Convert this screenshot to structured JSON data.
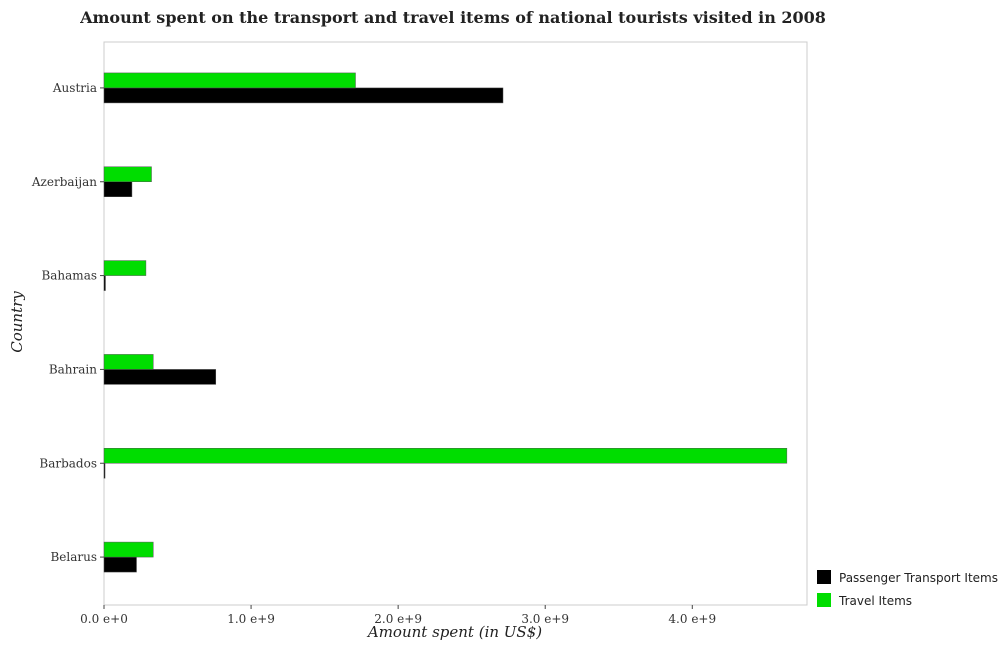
{
  "chart_data": {
    "type": "bar",
    "orientation": "horizontal",
    "title": "Amount spent on the transport and travel items of national tourists visited in 2008",
    "xlabel": "Amount spent (in US$)",
    "ylabel": "Country",
    "xlim": [
      0,
      4780000000
    ],
    "xticks": [
      0,
      1000000000,
      2000000000,
      3000000000,
      4000000000
    ],
    "xtick_labels": [
      "0.0 e+0",
      "1.0 e+9",
      "2.0 e+9",
      "3.0 e+9",
      "4.0 e+9"
    ],
    "categories": [
      "Austria",
      "Azerbaijan",
      "Bahamas",
      "Bahrain",
      "Barbados",
      "Belarus"
    ],
    "series": [
      {
        "name": "Passenger Transport Items",
        "color": "#000000",
        "values": [
          2713000000,
          190000000,
          10000000,
          760000000,
          7000000,
          221000000
        ]
      },
      {
        "name": "Travel Items",
        "color": "#00dd00",
        "values": [
          1710000000,
          323000000,
          285000000,
          335000000,
          4643000000,
          335000000
        ]
      }
    ],
    "legend_position": "bottom-right",
    "grid": false
  }
}
